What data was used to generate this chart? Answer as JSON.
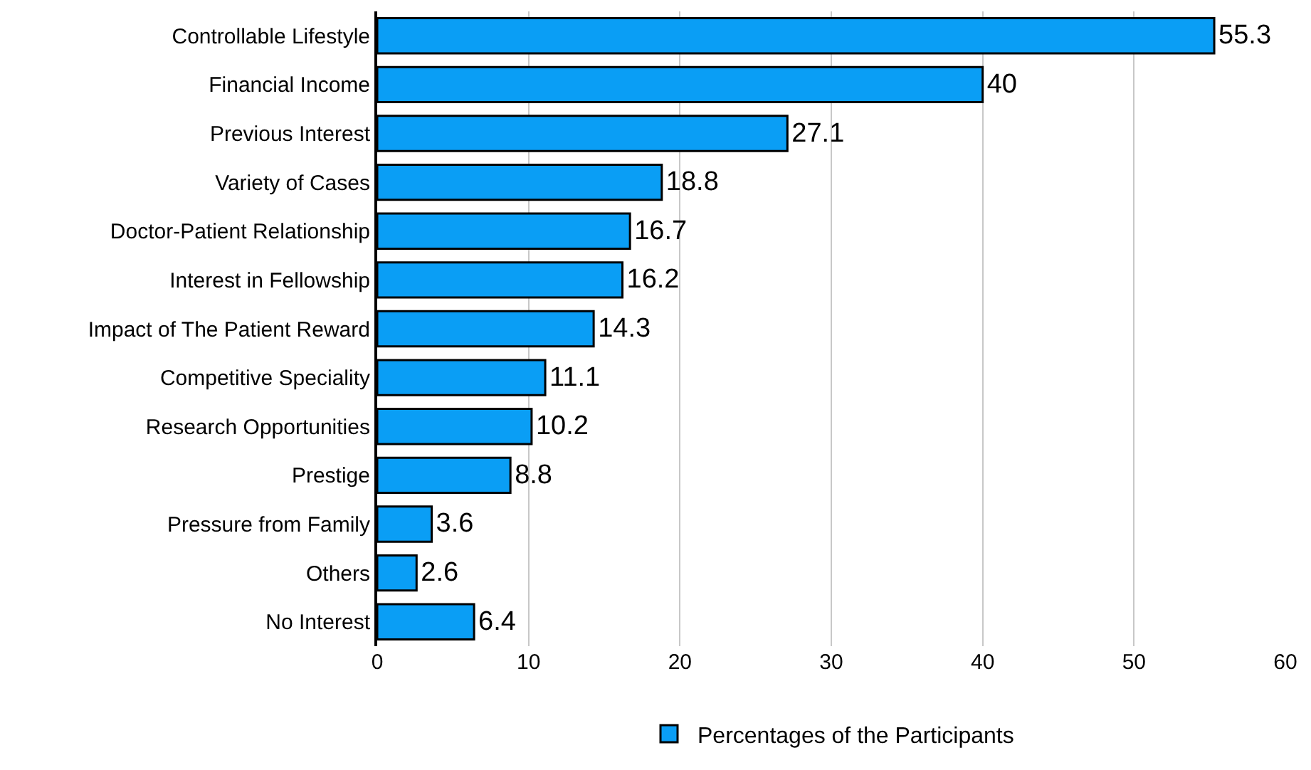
{
  "chart_data": {
    "type": "bar",
    "orientation": "horizontal",
    "categories": [
      "Controllable Lifestyle",
      "Financial Income",
      "Previous Interest",
      "Variety of Cases",
      "Doctor-Patient Relationship",
      "Interest in Fellowship",
      "Impact of The Patient Reward",
      "Competitive Speciality",
      "Research Opportunities",
      "Prestige",
      "Pressure from Family",
      "Others",
      "No Interest"
    ],
    "series": [
      {
        "name": "Percentages of the Participants",
        "color": "#0a9ef5",
        "values": [
          55.3,
          40,
          27.1,
          18.8,
          16.7,
          16.2,
          14.3,
          11.1,
          10.2,
          8.8,
          3.6,
          2.6,
          6.4
        ]
      }
    ],
    "xlim": [
      0,
      60
    ],
    "xticks": [
      0,
      10,
      20,
      30,
      40,
      50,
      60
    ],
    "grid": "x",
    "legend": "bottom",
    "data_labels": true
  }
}
